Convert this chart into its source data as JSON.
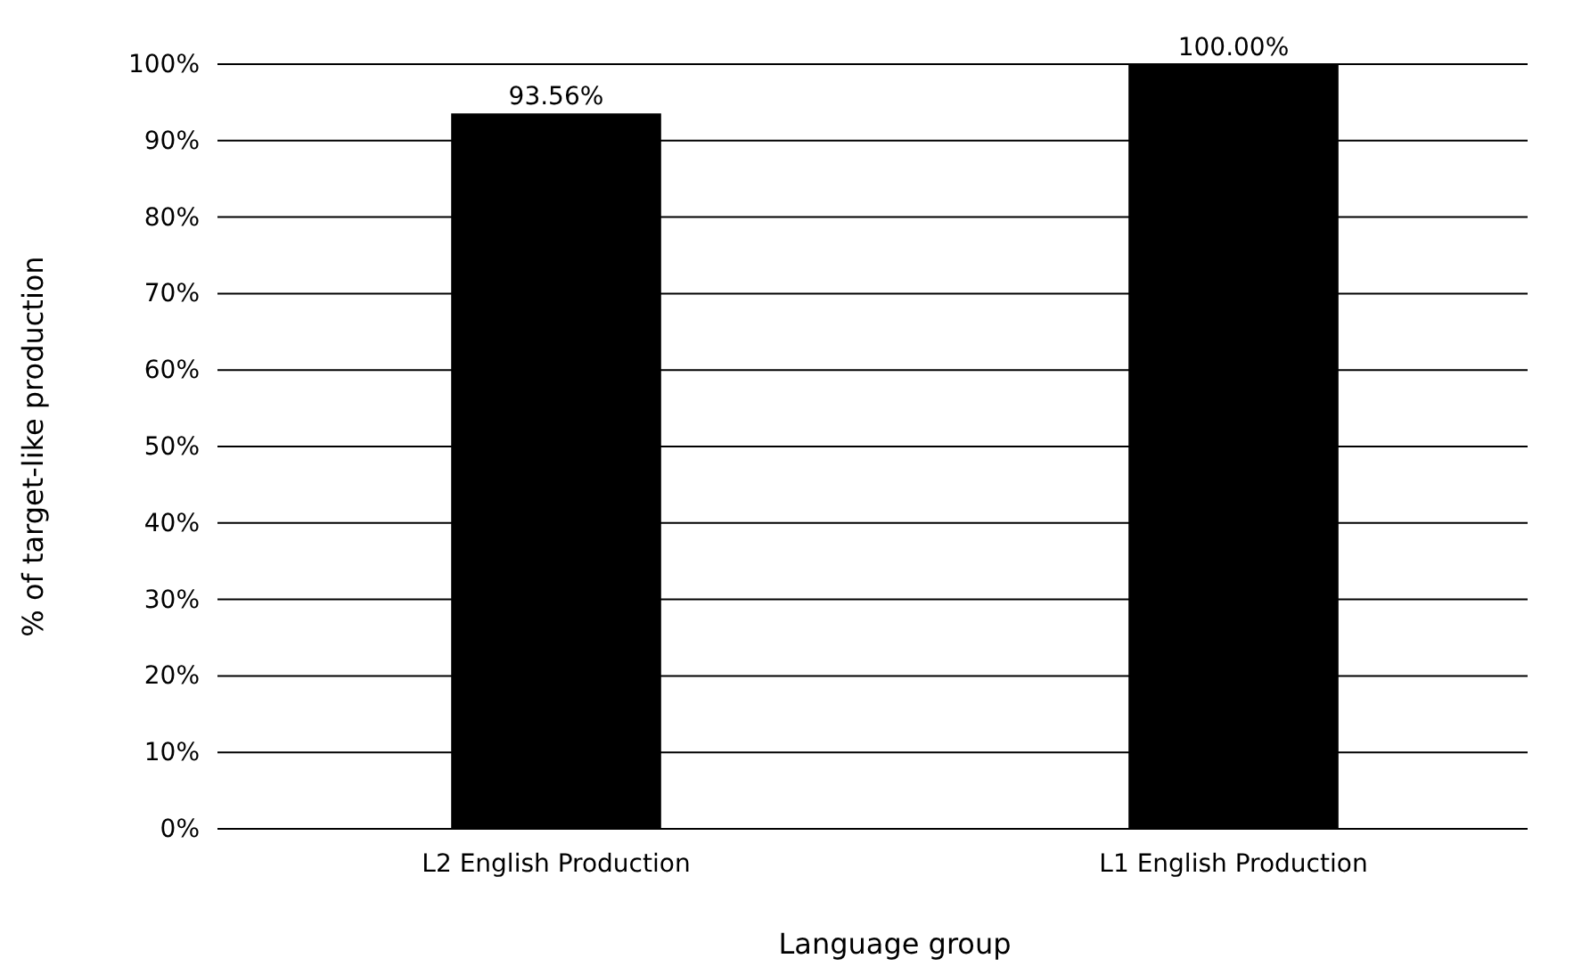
{
  "chart_data": {
    "type": "bar",
    "xlabel": "Language group",
    "ylabel": "% of target-like production",
    "categories": [
      "L2 English Production",
      "L1 English Production"
    ],
    "values": [
      93.56,
      100
    ],
    "color": "#000000",
    "value_labels": [
      "93.56%",
      "100.00%"
    ],
    "ylim": [
      0,
      100
    ],
    "yticks": [
      {
        "value": 0,
        "label": "0%"
      },
      {
        "value": 10,
        "label": "10%"
      },
      {
        "value": 20,
        "label": "20%"
      },
      {
        "value": 30,
        "label": "30%"
      },
      {
        "value": 40,
        "label": "40%"
      },
      {
        "value": 50,
        "label": "50%"
      },
      {
        "value": 60,
        "label": "60%"
      },
      {
        "value": 70,
        "label": "70%"
      },
      {
        "value": 80,
        "label": "80%"
      },
      {
        "value": 90,
        "label": "90%"
      },
      {
        "value": 100,
        "label": "100%"
      }
    ],
    "grid": "y"
  }
}
